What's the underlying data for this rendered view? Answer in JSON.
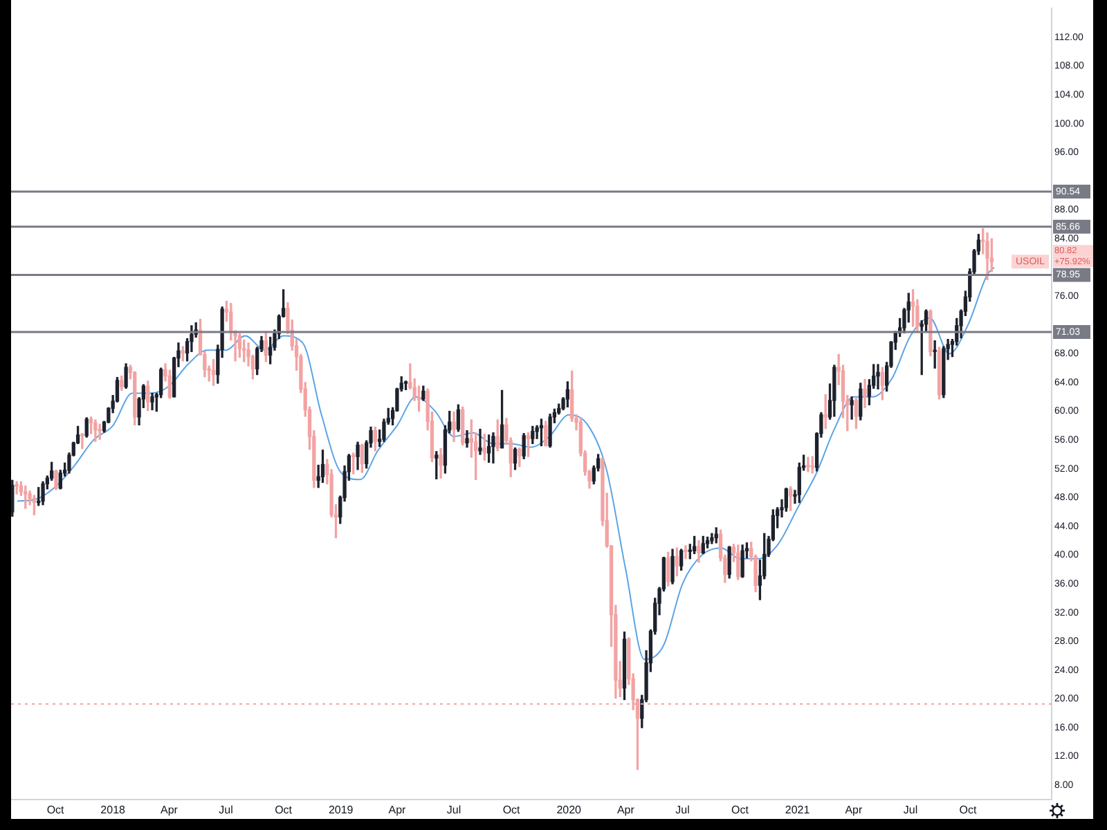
{
  "chart_data": {
    "type": "candlestick",
    "x": [
      "2017-07-24",
      "2017-07-31",
      "2017-08-07",
      "2017-08-14",
      "2017-08-21",
      "2017-08-28",
      "2017-09-04",
      "2017-09-11",
      "2017-09-18",
      "2017-09-25",
      "2017-10-02",
      "2017-10-09",
      "2017-10-16",
      "2017-10-23",
      "2017-10-30",
      "2017-11-06",
      "2017-11-13",
      "2017-11-20",
      "2017-11-27",
      "2017-12-04",
      "2017-12-11",
      "2017-12-18",
      "2017-12-25",
      "2018-01-01",
      "2018-01-08",
      "2018-01-15",
      "2018-01-22",
      "2018-01-29",
      "2018-02-05",
      "2018-02-12",
      "2018-02-19",
      "2018-02-26",
      "2018-03-05",
      "2018-03-12",
      "2018-03-19",
      "2018-03-26",
      "2018-04-02",
      "2018-04-09",
      "2018-04-16",
      "2018-04-23",
      "2018-04-30",
      "2018-05-07",
      "2018-05-14",
      "2018-05-21",
      "2018-05-28",
      "2018-06-04",
      "2018-06-11",
      "2018-06-18",
      "2018-06-25",
      "2018-07-02",
      "2018-07-09",
      "2018-07-16",
      "2018-07-23",
      "2018-07-30",
      "2018-08-06",
      "2018-08-13",
      "2018-08-20",
      "2018-08-27",
      "2018-09-03",
      "2018-09-10",
      "2018-09-17",
      "2018-09-24",
      "2018-10-01",
      "2018-10-08",
      "2018-10-15",
      "2018-10-22",
      "2018-10-29",
      "2018-11-05",
      "2018-11-12",
      "2018-11-19",
      "2018-11-26",
      "2018-12-03",
      "2018-12-10",
      "2018-12-17",
      "2018-12-24",
      "2018-12-31",
      "2019-01-07",
      "2019-01-14",
      "2019-01-21",
      "2019-01-28",
      "2019-02-04",
      "2019-02-11",
      "2019-02-18",
      "2019-02-25",
      "2019-03-04",
      "2019-03-11",
      "2019-03-18",
      "2019-03-25",
      "2019-04-01",
      "2019-04-08",
      "2019-04-15",
      "2019-04-22",
      "2019-04-29",
      "2019-05-06",
      "2019-05-13",
      "2019-05-20",
      "2019-05-27",
      "2019-06-03",
      "2019-06-10",
      "2019-06-17",
      "2019-06-24",
      "2019-07-01",
      "2019-07-08",
      "2019-07-15",
      "2019-07-22",
      "2019-07-29",
      "2019-08-05",
      "2019-08-12",
      "2019-08-19",
      "2019-08-26",
      "2019-09-02",
      "2019-09-09",
      "2019-09-16",
      "2019-09-23",
      "2019-09-30",
      "2019-10-07",
      "2019-10-14",
      "2019-10-21",
      "2019-10-28",
      "2019-11-04",
      "2019-11-11",
      "2019-11-18",
      "2019-11-25",
      "2019-12-02",
      "2019-12-09",
      "2019-12-16",
      "2019-12-23",
      "2019-12-30",
      "2020-01-06",
      "2020-01-13",
      "2020-01-20",
      "2020-01-27",
      "2020-02-03",
      "2020-02-10",
      "2020-02-17",
      "2020-02-24",
      "2020-03-02",
      "2020-03-09",
      "2020-03-16",
      "2020-03-23",
      "2020-03-30",
      "2020-04-06",
      "2020-04-13",
      "2020-04-20",
      "2020-04-27",
      "2020-05-04",
      "2020-05-11",
      "2020-05-18",
      "2020-05-25",
      "2020-06-01",
      "2020-06-08",
      "2020-06-15",
      "2020-06-22",
      "2020-06-29",
      "2020-07-06",
      "2020-07-13",
      "2020-07-20",
      "2020-07-27",
      "2020-08-03",
      "2020-08-10",
      "2020-08-17",
      "2020-08-24",
      "2020-08-31",
      "2020-09-07",
      "2020-09-14",
      "2020-09-21",
      "2020-09-28",
      "2020-10-05",
      "2020-10-12",
      "2020-10-19",
      "2020-10-26",
      "2020-11-02",
      "2020-11-09",
      "2020-11-16",
      "2020-11-23",
      "2020-11-30",
      "2020-12-07",
      "2020-12-14",
      "2020-12-21",
      "2020-12-28",
      "2021-01-04",
      "2021-01-11",
      "2021-01-18",
      "2021-01-25",
      "2021-02-01",
      "2021-02-08",
      "2021-02-15",
      "2021-02-22",
      "2021-03-01",
      "2021-03-08",
      "2021-03-15",
      "2021-03-22",
      "2021-03-29",
      "2021-04-05",
      "2021-04-12",
      "2021-04-19",
      "2021-04-26",
      "2021-05-03",
      "2021-05-10",
      "2021-05-17",
      "2021-05-24",
      "2021-05-31",
      "2021-06-07",
      "2021-06-14",
      "2021-06-21",
      "2021-06-28",
      "2021-07-05",
      "2021-07-12",
      "2021-07-19",
      "2021-07-26",
      "2021-08-02",
      "2021-08-09",
      "2021-08-16",
      "2021-08-23",
      "2021-08-30",
      "2021-09-06",
      "2021-09-13",
      "2021-09-20",
      "2021-09-27",
      "2021-10-04",
      "2021-10-11",
      "2021-10-18",
      "2021-10-25",
      "2021-11-01",
      "2021-11-08"
    ],
    "ohlc": [
      [
        46.0,
        50.4,
        45.4,
        49.7
      ],
      [
        49.7,
        50.2,
        48.5,
        49.6
      ],
      [
        49.6,
        50.2,
        48.3,
        48.8
      ],
      [
        48.8,
        49.6,
        46.5,
        48.5
      ],
      [
        48.5,
        48.9,
        47.0,
        47.9
      ],
      [
        47.9,
        48.3,
        45.6,
        47.3
      ],
      [
        47.3,
        49.4,
        46.9,
        47.5
      ],
      [
        47.5,
        50.2,
        47.0,
        49.9
      ],
      [
        49.9,
        51.0,
        49.2,
        50.7
      ],
      [
        50.7,
        52.9,
        50.4,
        51.7
      ],
      [
        51.7,
        51.8,
        49.1,
        49.3
      ],
      [
        49.3,
        51.8,
        49.2,
        51.4
      ],
      [
        51.4,
        52.8,
        51.0,
        51.8
      ],
      [
        51.8,
        54.2,
        51.4,
        53.9
      ],
      [
        53.9,
        55.7,
        53.8,
        55.6
      ],
      [
        55.6,
        57.9,
        55.5,
        56.7
      ],
      [
        56.7,
        56.9,
        54.8,
        56.6
      ],
      [
        56.6,
        59.1,
        56.4,
        58.9
      ],
      [
        58.9,
        59.2,
        56.9,
        58.4
      ],
      [
        58.4,
        58.8,
        55.8,
        57.4
      ],
      [
        57.4,
        58.2,
        56.1,
        57.3
      ],
      [
        57.3,
        58.6,
        57.1,
        58.5
      ],
      [
        58.5,
        60.5,
        58.4,
        60.4
      ],
      [
        60.4,
        62.2,
        59.8,
        61.4
      ],
      [
        61.4,
        64.7,
        61.3,
        64.3
      ],
      [
        64.3,
        64.9,
        62.9,
        63.4
      ],
      [
        63.4,
        66.6,
        63.2,
        66.1
      ],
      [
        66.1,
        66.4,
        64.5,
        65.4
      ],
      [
        65.4,
        65.5,
        58.1,
        59.2
      ],
      [
        59.2,
        61.9,
        58.1,
        61.7
      ],
      [
        61.7,
        63.7,
        60.5,
        63.5
      ],
      [
        63.5,
        64.2,
        60.1,
        61.3
      ],
      [
        61.3,
        62.5,
        60.2,
        62.0
      ],
      [
        62.0,
        62.5,
        60.0,
        62.3
      ],
      [
        62.3,
        66.0,
        61.9,
        65.8
      ],
      [
        65.8,
        66.6,
        64.2,
        64.9
      ],
      [
        64.9,
        65.7,
        61.8,
        62.0
      ],
      [
        62.0,
        67.5,
        62.0,
        67.4
      ],
      [
        67.4,
        69.5,
        66.2,
        68.4
      ],
      [
        68.4,
        69.0,
        67.0,
        68.1
      ],
      [
        68.1,
        70.1,
        67.0,
        69.7
      ],
      [
        69.7,
        71.9,
        68.3,
        70.7
      ],
      [
        70.7,
        72.3,
        70.3,
        71.3
      ],
      [
        71.3,
        72.8,
        67.8,
        67.9
      ],
      [
        67.9,
        68.3,
        64.8,
        65.8
      ],
      [
        65.8,
        66.3,
        64.2,
        65.7
      ],
      [
        65.7,
        67.2,
        63.6,
        65.1
      ],
      [
        65.1,
        69.2,
        63.9,
        68.6
      ],
      [
        68.6,
        74.5,
        67.5,
        74.2
      ],
      [
        74.2,
        75.3,
        72.5,
        73.8
      ],
      [
        73.8,
        75.0,
        69.9,
        71.0
      ],
      [
        71.0,
        71.2,
        67.0,
        70.5
      ],
      [
        70.5,
        70.8,
        67.5,
        68.7
      ],
      [
        68.7,
        69.9,
        66.9,
        68.5
      ],
      [
        68.5,
        69.5,
        66.3,
        67.6
      ],
      [
        67.6,
        67.8,
        64.5,
        65.9
      ],
      [
        65.9,
        68.9,
        65.1,
        68.7
      ],
      [
        68.7,
        70.4,
        68.3,
        69.8
      ],
      [
        69.8,
        71.1,
        66.9,
        67.8
      ],
      [
        67.8,
        70.3,
        66.6,
        68.9
      ],
      [
        68.9,
        71.3,
        68.5,
        70.8
      ],
      [
        70.8,
        73.4,
        70.1,
        73.2
      ],
      [
        73.2,
        76.9,
        73.1,
        74.3
      ],
      [
        74.3,
        75.1,
        70.8,
        71.3
      ],
      [
        71.3,
        72.7,
        68.5,
        69.1
      ],
      [
        69.1,
        70.0,
        65.7,
        67.6
      ],
      [
        67.6,
        67.9,
        62.6,
        63.1
      ],
      [
        63.1,
        64.0,
        59.3,
        60.2
      ],
      [
        60.2,
        60.6,
        54.7,
        56.5
      ],
      [
        56.5,
        57.3,
        49.4,
        50.4
      ],
      [
        50.4,
        52.5,
        49.4,
        50.9
      ],
      [
        50.9,
        54.6,
        50.1,
        52.6
      ],
      [
        52.6,
        53.3,
        49.9,
        51.2
      ],
      [
        51.2,
        51.9,
        45.3,
        45.6
      ],
      [
        45.6,
        47.0,
        42.4,
        45.3
      ],
      [
        45.3,
        48.2,
        44.4,
        48.0
      ],
      [
        48.0,
        52.4,
        47.5,
        51.6
      ],
      [
        51.6,
        54.0,
        50.4,
        53.8
      ],
      [
        53.8,
        54.2,
        51.3,
        53.7
      ],
      [
        53.7,
        55.7,
        51.9,
        55.3
      ],
      [
        55.3,
        55.4,
        51.5,
        52.7
      ],
      [
        52.7,
        55.9,
        52.1,
        55.6
      ],
      [
        55.6,
        57.8,
        55.0,
        57.3
      ],
      [
        57.3,
        57.8,
        54.5,
        55.8
      ],
      [
        55.8,
        57.4,
        55.1,
        56.1
      ],
      [
        56.1,
        58.9,
        55.8,
        58.5
      ],
      [
        58.5,
        60.4,
        58.2,
        59.0
      ],
      [
        59.0,
        60.5,
        58.1,
        60.1
      ],
      [
        60.1,
        63.2,
        60.0,
        63.1
      ],
      [
        63.1,
        64.8,
        62.8,
        63.9
      ],
      [
        63.9,
        64.2,
        63.0,
        64.0
      ],
      [
        64.0,
        66.6,
        63.1,
        63.3
      ],
      [
        63.3,
        64.5,
        61.5,
        61.9
      ],
      [
        61.9,
        63.5,
        60.0,
        61.7
      ],
      [
        61.7,
        63.5,
        61.5,
        62.8
      ],
      [
        62.8,
        63.1,
        57.4,
        58.6
      ],
      [
        58.6,
        59.9,
        53.0,
        53.5
      ],
      [
        53.5,
        54.4,
        50.6,
        53.9
      ],
      [
        53.9,
        54.8,
        50.7,
        52.5
      ],
      [
        52.5,
        58.0,
        51.4,
        57.4
      ],
      [
        57.4,
        60.0,
        57.0,
        58.5
      ],
      [
        58.5,
        59.9,
        55.8,
        57.5
      ],
      [
        57.5,
        60.9,
        57.2,
        60.2
      ],
      [
        60.2,
        60.6,
        55.3,
        55.6
      ],
      [
        55.6,
        57.3,
        55.0,
        56.2
      ],
      [
        56.2,
        58.8,
        53.6,
        55.7
      ],
      [
        55.7,
        57.0,
        50.5,
        54.5
      ],
      [
        54.5,
        57.5,
        54.0,
        54.9
      ],
      [
        54.9,
        56.8,
        53.2,
        54.2
      ],
      [
        54.2,
        56.7,
        52.9,
        55.1
      ],
      [
        55.1,
        57.0,
        52.8,
        56.5
      ],
      [
        56.5,
        58.8,
        54.5,
        54.9
      ],
      [
        54.9,
        62.9,
        54.9,
        58.1
      ],
      [
        58.1,
        59.0,
        55.4,
        55.9
      ],
      [
        55.9,
        56.3,
        50.9,
        52.8
      ],
      [
        52.8,
        54.9,
        51.9,
        54.7
      ],
      [
        54.7,
        54.9,
        52.3,
        53.8
      ],
      [
        53.8,
        56.9,
        53.4,
        56.6
      ],
      [
        56.6,
        57.0,
        53.7,
        56.2
      ],
      [
        56.2,
        57.9,
        55.5,
        57.2
      ],
      [
        57.2,
        58.0,
        56.2,
        57.7
      ],
      [
        57.7,
        58.9,
        55.2,
        58.0
      ],
      [
        58.0,
        58.6,
        55.2,
        55.2
      ],
      [
        55.2,
        59.6,
        55.0,
        59.2
      ],
      [
        59.2,
        60.3,
        58.4,
        59.8
      ],
      [
        59.8,
        61.0,
        59.6,
        60.4
      ],
      [
        60.4,
        61.9,
        60.2,
        61.7
      ],
      [
        61.7,
        64.1,
        60.6,
        63.0
      ],
      [
        63.0,
        65.6,
        58.6,
        59.0
      ],
      [
        59.0,
        59.5,
        57.4,
        58.5
      ],
      [
        58.5,
        59.1,
        53.8,
        54.2
      ],
      [
        54.2,
        54.5,
        51.1,
        51.6
      ],
      [
        51.6,
        51.8,
        49.3,
        50.3
      ],
      [
        50.3,
        52.4,
        49.9,
        52.1
      ],
      [
        52.1,
        54.0,
        51.7,
        53.4
      ],
      [
        53.4,
        53.5,
        44.1,
        44.8
      ],
      [
        44.8,
        48.6,
        41.1,
        41.3
      ],
      [
        41.3,
        41.3,
        27.3,
        31.7
      ],
      [
        31.7,
        33.0,
        20.1,
        22.6
      ],
      [
        22.6,
        25.2,
        20.3,
        21.5
      ],
      [
        21.5,
        29.3,
        19.9,
        28.3
      ],
      [
        28.3,
        28.5,
        22.0,
        22.8
      ],
      [
        22.8,
        23.5,
        18.5,
        19.9
      ],
      [
        19.9,
        20.0,
        10.2,
        17.3
      ],
      [
        17.3,
        20.5,
        16.0,
        19.9
      ],
      [
        19.9,
        26.7,
        19.6,
        25.0
      ],
      [
        25.0,
        29.6,
        23.8,
        29.4
      ],
      [
        29.4,
        34.0,
        29.0,
        33.3
      ],
      [
        33.3,
        35.5,
        31.7,
        35.3
      ],
      [
        35.3,
        39.7,
        35.0,
        39.6
      ],
      [
        39.6,
        40.4,
        35.7,
        36.3
      ],
      [
        36.3,
        40.8,
        36.0,
        39.8
      ],
      [
        39.8,
        41.0,
        37.1,
        38.5
      ],
      [
        38.5,
        40.8,
        37.9,
        40.6
      ],
      [
        40.6,
        41.3,
        39.5,
        40.5
      ],
      [
        40.5,
        41.5,
        39.5,
        40.6
      ],
      [
        40.6,
        42.6,
        40.2,
        41.2
      ],
      [
        41.2,
        42.0,
        39.0,
        40.3
      ],
      [
        40.3,
        42.6,
        40.2,
        41.6
      ],
      [
        41.6,
        42.5,
        41.0,
        42.0
      ],
      [
        42.0,
        43.0,
        41.6,
        42.4
      ],
      [
        42.4,
        43.8,
        41.7,
        42.9
      ],
      [
        42.9,
        43.5,
        39.2,
        39.6
      ],
      [
        39.6,
        40.0,
        36.2,
        37.3
      ],
      [
        37.3,
        41.2,
        36.8,
        41.1
      ],
      [
        41.1,
        41.5,
        39.1,
        40.3
      ],
      [
        40.3,
        41.4,
        36.6,
        37.0
      ],
      [
        37.0,
        41.4,
        36.9,
        40.6
      ],
      [
        40.6,
        41.7,
        39.6,
        40.9
      ],
      [
        40.9,
        41.8,
        39.2,
        39.8
      ],
      [
        39.8,
        40.0,
        34.9,
        35.8
      ],
      [
        35.8,
        39.3,
        33.8,
        37.1
      ],
      [
        37.1,
        43.0,
        36.7,
        40.1
      ],
      [
        40.1,
        42.6,
        39.8,
        42.2
      ],
      [
        42.2,
        46.3,
        42.0,
        45.5
      ],
      [
        45.5,
        46.6,
        43.8,
        46.3
      ],
      [
        46.3,
        47.7,
        45.3,
        46.6
      ],
      [
        46.6,
        49.3,
        46.1,
        49.2
      ],
      [
        49.2,
        49.5,
        46.2,
        48.2
      ],
      [
        48.2,
        49.0,
        47.2,
        48.4
      ],
      [
        48.4,
        52.8,
        47.3,
        52.2
      ],
      [
        52.2,
        53.9,
        51.8,
        52.4
      ],
      [
        52.4,
        53.6,
        51.6,
        52.3
      ],
      [
        52.3,
        53.7,
        51.4,
        52.2
      ],
      [
        52.2,
        57.0,
        51.7,
        56.9
      ],
      [
        56.9,
        59.8,
        56.4,
        59.5
      ],
      [
        59.5,
        62.3,
        57.6,
        59.2
      ],
      [
        59.2,
        63.8,
        58.9,
        61.5
      ],
      [
        61.5,
        66.4,
        59.3,
        66.1
      ],
      [
        66.1,
        67.9,
        63.7,
        65.6
      ],
      [
        65.6,
        66.4,
        59.1,
        61.4
      ],
      [
        61.4,
        62.2,
        57.3,
        60.9
      ],
      [
        60.9,
        62.0,
        58.9,
        61.5
      ],
      [
        61.5,
        61.8,
        57.6,
        59.3
      ],
      [
        59.3,
        63.9,
        58.8,
        63.1
      ],
      [
        63.1,
        64.4,
        60.5,
        62.1
      ],
      [
        62.1,
        64.4,
        60.9,
        63.6
      ],
      [
        63.6,
        66.5,
        63.2,
        64.9
      ],
      [
        64.9,
        66.5,
        63.1,
        65.4
      ],
      [
        65.4,
        66.1,
        61.6,
        63.6
      ],
      [
        63.6,
        66.8,
        62.8,
        66.3
      ],
      [
        66.3,
        69.7,
        66.1,
        69.6
      ],
      [
        69.6,
        71.1,
        68.6,
        70.9
      ],
      [
        70.9,
        72.9,
        70.4,
        71.6
      ],
      [
        71.6,
        74.3,
        70.9,
        74.1
      ],
      [
        74.1,
        76.4,
        72.4,
        75.2
      ],
      [
        75.2,
        76.9,
        71.8,
        74.6
      ],
      [
        74.6,
        75.5,
        71.2,
        71.8
      ],
      [
        71.8,
        72.6,
        65.1,
        72.1
      ],
      [
        72.1,
        74.1,
        71.0,
        73.9
      ],
      [
        73.9,
        74.1,
        67.7,
        68.3
      ],
      [
        68.3,
        69.8,
        66.0,
        68.4
      ],
      [
        68.4,
        68.9,
        61.7,
        62.3
      ],
      [
        62.3,
        69.0,
        61.9,
        68.7
      ],
      [
        68.7,
        70.0,
        67.2,
        69.3
      ],
      [
        69.3,
        70.0,
        67.6,
        69.7
      ],
      [
        69.7,
        72.9,
        69.2,
        71.9
      ],
      [
        71.9,
        74.1,
        70.2,
        73.9
      ],
      [
        73.9,
        76.7,
        73.3,
        75.9
      ],
      [
        75.9,
        79.8,
        75.3,
        79.4
      ],
      [
        79.4,
        82.5,
        79.1,
        82.3
      ],
      [
        82.3,
        84.6,
        81.8,
        83.8
      ],
      [
        83.8,
        85.4,
        81.9,
        83.6
      ],
      [
        83.6,
        84.8,
        78.3,
        81.3
      ],
      [
        81.3,
        84.0,
        79.4,
        80.8
      ]
    ],
    "series": [
      {
        "type": "line",
        "color": "#5ba4e6",
        "x": [
          "2017-08-01",
          "2017-09-01",
          "2017-10-01",
          "2017-11-01",
          "2017-12-01",
          "2018-01-01",
          "2018-02-01",
          "2018-03-01",
          "2018-04-01",
          "2018-05-01",
          "2018-06-01",
          "2018-07-01",
          "2018-08-01",
          "2018-09-01",
          "2018-10-01",
          "2018-11-01",
          "2018-12-01",
          "2019-01-01",
          "2019-02-01",
          "2019-03-01",
          "2019-04-01",
          "2019-05-01",
          "2019-06-01",
          "2019-07-01",
          "2019-08-01",
          "2019-09-01",
          "2019-10-01",
          "2019-11-01",
          "2019-12-01",
          "2020-01-01",
          "2020-02-01",
          "2020-03-01",
          "2020-04-01",
          "2020-05-01",
          "2020-06-01",
          "2020-07-01",
          "2020-08-01",
          "2020-09-01",
          "2020-10-01",
          "2020-11-01",
          "2020-12-01",
          "2021-01-01",
          "2021-02-01",
          "2021-03-01",
          "2021-04-01",
          "2021-05-01",
          "2021-06-01",
          "2021-07-01",
          "2021-08-01",
          "2021-09-01",
          "2021-10-01",
          "2021-11-01",
          "2021-11-12"
        ],
        "values": [
          47.5,
          47.8,
          49.5,
          52.5,
          56.0,
          58.0,
          62.5,
          62.5,
          63.5,
          66.5,
          68.5,
          68.5,
          70.5,
          68.5,
          70.5,
          69.5,
          59.5,
          51.5,
          50.5,
          54.5,
          58.0,
          62.0,
          60.0,
          56.5,
          57.0,
          55.5,
          55.5,
          55.0,
          56.5,
          59.5,
          58.0,
          52.0,
          38.0,
          25.5,
          27.5,
          36.0,
          40.0,
          41.0,
          39.5,
          39.5,
          41.5,
          46.5,
          51.5,
          57.5,
          62.0,
          62.0,
          64.5,
          70.5,
          73.0,
          68.0,
          72.0,
          79.0,
          80.0
        ]
      }
    ],
    "xlim": [
      "2017-07-22",
      "2022-02-12"
    ],
    "xticks": [
      {
        "value": "2017-10-01",
        "label": "Oct"
      },
      {
        "value": "2018-01-01",
        "label": "2018"
      },
      {
        "value": "2018-04-01",
        "label": "Apr"
      },
      {
        "value": "2018-07-01",
        "label": "Jul"
      },
      {
        "value": "2018-10-01",
        "label": "Oct"
      },
      {
        "value": "2019-01-01",
        "label": "2019"
      },
      {
        "value": "2019-04-01",
        "label": "Apr"
      },
      {
        "value": "2019-07-01",
        "label": "Jul"
      },
      {
        "value": "2019-10-01",
        "label": "Oct"
      },
      {
        "value": "2020-01-01",
        "label": "2020"
      },
      {
        "value": "2020-04-01",
        "label": "Apr"
      },
      {
        "value": "2020-07-01",
        "label": "Jul"
      },
      {
        "value": "2020-10-01",
        "label": "Oct"
      },
      {
        "value": "2021-01-01",
        "label": "2021"
      },
      {
        "value": "2021-04-01",
        "label": "Apr"
      },
      {
        "value": "2021-07-01",
        "label": "Jul"
      },
      {
        "value": "2021-10-01",
        "label": "Oct"
      }
    ],
    "ylim": [
      6,
      116
    ],
    "yticks": [
      {
        "value": 8,
        "label": "8.00"
      },
      {
        "value": 12,
        "label": "12.00"
      },
      {
        "value": 16,
        "label": "16.00"
      },
      {
        "value": 20,
        "label": "20.00"
      },
      {
        "value": 24,
        "label": "24.00"
      },
      {
        "value": 28,
        "label": "28.00"
      },
      {
        "value": 32,
        "label": "32.00"
      },
      {
        "value": 36,
        "label": "36.00"
      },
      {
        "value": 40,
        "label": "40.00"
      },
      {
        "value": 44,
        "label": "44.00"
      },
      {
        "value": 48,
        "label": "48.00"
      },
      {
        "value": 52,
        "label": "52.00"
      },
      {
        "value": 56,
        "label": "56.00"
      },
      {
        "value": 60,
        "label": "60.00"
      },
      {
        "value": 64,
        "label": "64.00"
      },
      {
        "value": 68,
        "label": "68.00"
      },
      {
        "value": 76,
        "label": "76.00"
      },
      {
        "value": 84,
        "label": "84.00"
      },
      {
        "value": 88,
        "label": "88.00"
      },
      {
        "value": 96,
        "label": "96.00"
      },
      {
        "value": 100,
        "label": "100.00"
      },
      {
        "value": 104,
        "label": "104.00"
      },
      {
        "value": 108,
        "label": "108.00"
      },
      {
        "value": 112,
        "label": "112.00"
      }
    ],
    "ref_lines": [
      {
        "axis": "y",
        "value": 90.54,
        "label": "90.54",
        "color": "#787b86"
      },
      {
        "axis": "y",
        "value": 85.66,
        "label": "85.66",
        "color": "#787b86"
      },
      {
        "axis": "y",
        "value": 78.95,
        "label": "78.95",
        "color": "#787b86"
      },
      {
        "axis": "y",
        "value": 71.03,
        "label": "71.03",
        "color": "#787b86"
      },
      {
        "axis": "y",
        "value": 19.3,
        "color": "#f3a0a0",
        "line_style": "dotted"
      }
    ],
    "annotations": [
      "USOIL",
      "80.82",
      "+75.92%"
    ]
  }
}
